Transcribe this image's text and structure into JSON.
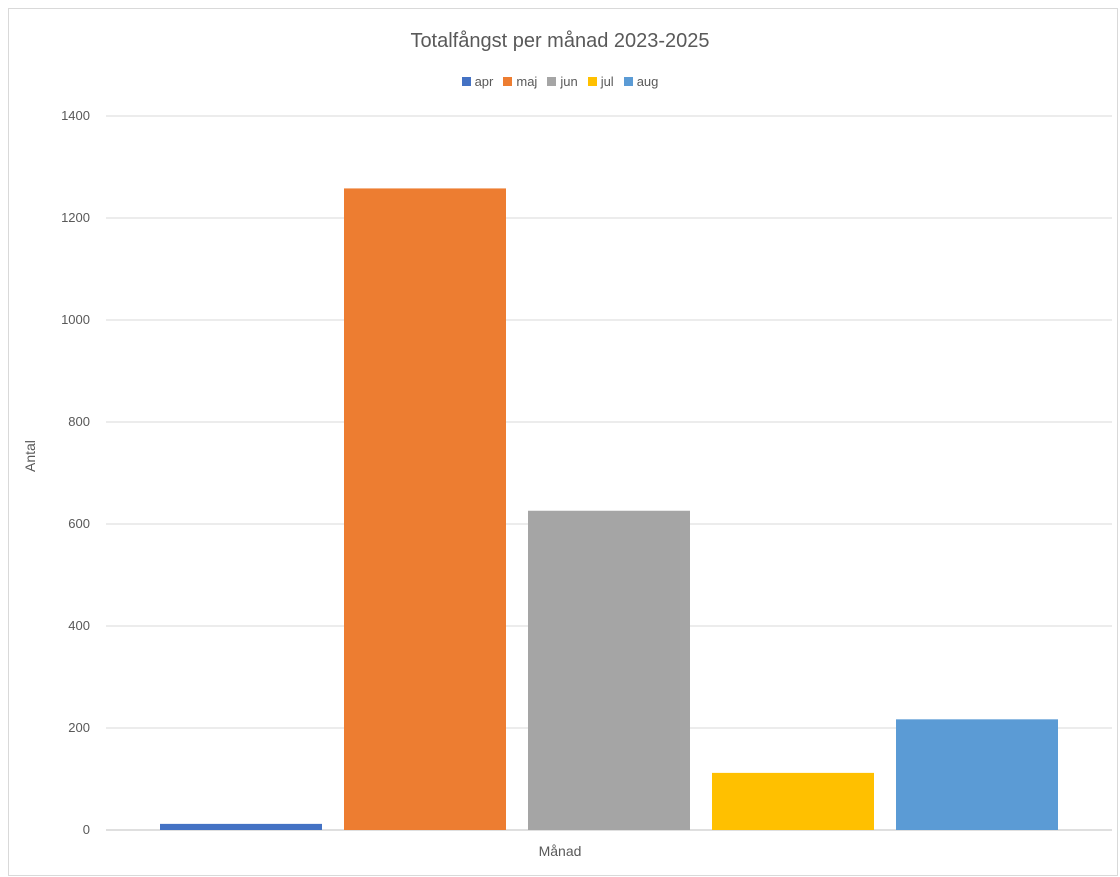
{
  "chart_data": {
    "type": "bar",
    "title": "Totalfångst per månad 2023-2025",
    "xlabel": "Månad",
    "ylabel": "Antal",
    "ylim": [
      0,
      1400
    ],
    "yticks": [
      0,
      200,
      400,
      600,
      800,
      1000,
      1200,
      1400
    ],
    "grid": true,
    "legend_position": "top",
    "series": [
      {
        "name": "apr",
        "values": [
          12
        ],
        "color": "#4472c4"
      },
      {
        "name": "maj",
        "values": [
          1258
        ],
        "color": "#ed7d31"
      },
      {
        "name": "jun",
        "values": [
          626
        ],
        "color": "#a5a5a5"
      },
      {
        "name": "jul",
        "values": [
          112
        ],
        "color": "#ffc000"
      },
      {
        "name": "aug",
        "values": [
          217
        ],
        "color": "#5b9bd5"
      }
    ]
  }
}
